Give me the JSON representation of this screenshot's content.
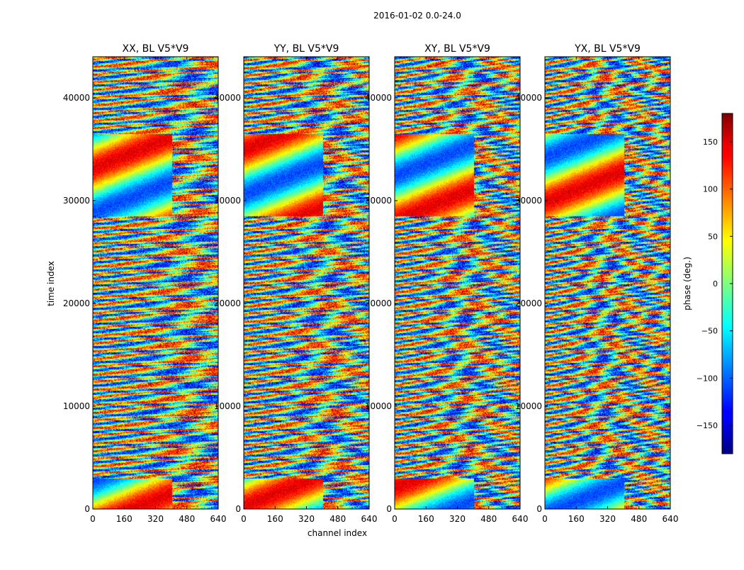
{
  "figure": {
    "suptitle": "2016-01-02 0.0-24.0"
  },
  "chart_data": {
    "type": "heatmap",
    "title": "2016-01-02 0.0-24.0",
    "xlabel": "channel index",
    "ylabel": "time index",
    "xlim": [
      0,
      640
    ],
    "ylim": [
      0,
      44000
    ],
    "xticks": [
      0,
      160,
      320,
      480,
      640
    ],
    "yticks": [
      0,
      10000,
      20000,
      30000,
      40000
    ],
    "colormap": "jet",
    "colorbar": {
      "label": "phase (deg.)",
      "range": [
        -180,
        180
      ],
      "ticks": [
        150,
        100,
        50,
        0,
        -50,
        -100,
        -150
      ],
      "tick_labels": [
        "150",
        "100",
        "50",
        "0",
        "−50",
        "−100",
        "−150"
      ]
    },
    "panels": [
      {
        "name": "XX, BL V5*V9"
      },
      {
        "name": "YY, BL V5*V9"
      },
      {
        "name": "XY, BL V5*V9"
      },
      {
        "name": "YX, BL V5*V9"
      }
    ],
    "colors": {
      "dark_blue": "#00007f",
      "blue": "#0000ff",
      "cyan": "#00ffff",
      "green": "#7fff7f",
      "yellow": "#ffff00",
      "red": "#ff0000",
      "dark_red": "#7f0000"
    }
  }
}
